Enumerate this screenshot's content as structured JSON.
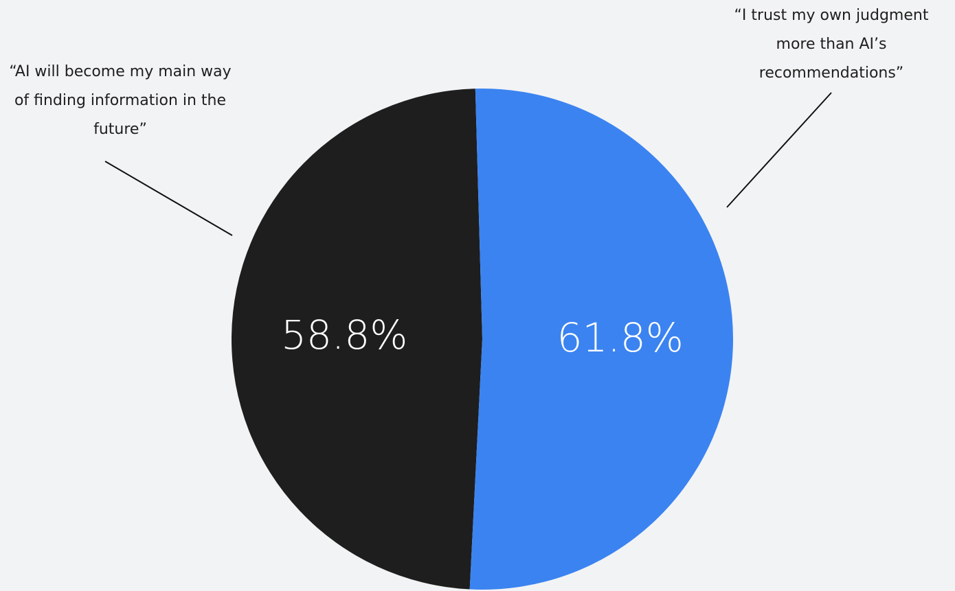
{
  "chart_data": {
    "type": "pie",
    "categories": [
      "“AI will become my main way of finding information in the future”",
      "“I trust my own judgment more than AI’s recommendations”"
    ],
    "values": [
      58.8,
      61.8
    ],
    "value_labels": [
      "58.8%",
      "61.8%"
    ],
    "colors": [
      "#1e1e1e",
      "#3b83f0"
    ]
  }
}
